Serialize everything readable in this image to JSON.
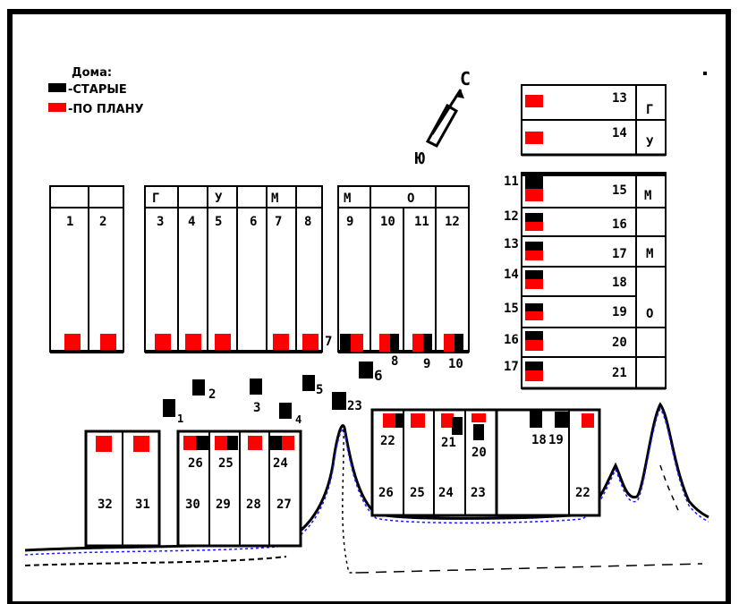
{
  "legend": {
    "title": "Дома:",
    "old_label": "-СТАРЫЕ",
    "planned_label": "-ПО ПЛАНУ",
    "old_color": "#000000",
    "planned_color": "#ff0000"
  },
  "compass": {
    "north": "С",
    "south": "Ю"
  },
  "top_left": {
    "col1": "1",
    "col2": "2"
  },
  "gum": {
    "letters": [
      "Г",
      "У",
      "М"
    ],
    "cols": [
      "3",
      "4",
      "5",
      "6",
      "7",
      "8"
    ]
  },
  "mo": {
    "letters": [
      "М",
      "О"
    ],
    "cols": [
      "9",
      "10",
      "11",
      "12"
    ],
    "old_labels": [
      "7",
      "8",
      "9",
      "10"
    ]
  },
  "right_top": {
    "rows": [
      "13",
      "14"
    ],
    "letters": [
      "Г",
      "У"
    ]
  },
  "right_main": {
    "rows": [
      "15",
      "16",
      "17",
      "18",
      "19",
      "20",
      "21"
    ],
    "old_labels": [
      "11",
      "12",
      "13",
      "14",
      "15",
      "16",
      "17"
    ],
    "letters": [
      "М",
      "М",
      "О"
    ]
  },
  "scattered_old": [
    "1",
    "2",
    "3",
    "4",
    "5",
    "6",
    "23"
  ],
  "bottom_left": {
    "cols": [
      "32",
      "31"
    ]
  },
  "bottom_mid": {
    "top_labels": [
      "26",
      "25",
      "24"
    ],
    "cols": [
      "30",
      "29",
      "28",
      "27"
    ]
  },
  "bottom_right": {
    "top_labels": [
      "22",
      "21",
      "20",
      "18",
      "19"
    ],
    "cols": [
      "26",
      "25",
      "24",
      "23",
      "22"
    ]
  }
}
